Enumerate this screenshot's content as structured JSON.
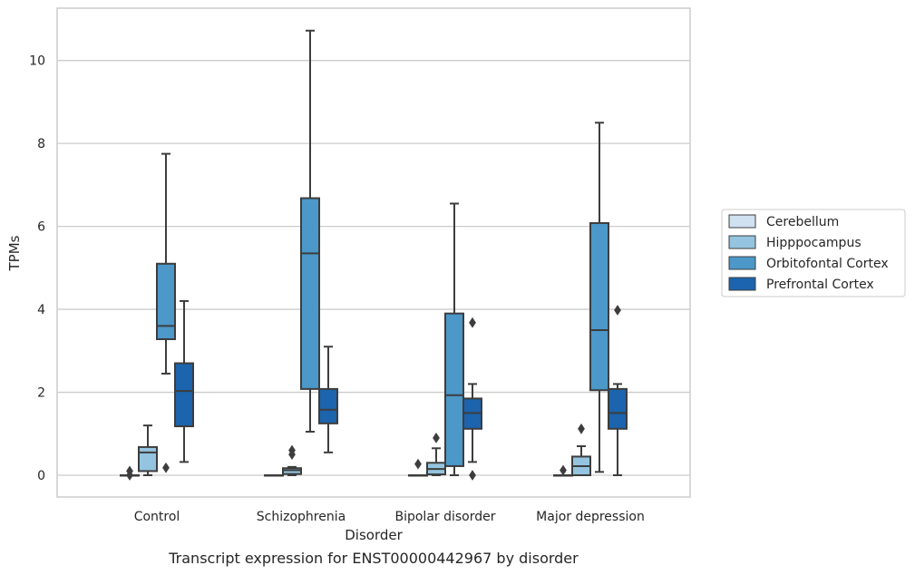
{
  "chart_data": {
    "type": "box",
    "xlabel": "Disorder",
    "ylabel": "TPMs",
    "caption": "Transcript expression for ENST00000442967 by disorder",
    "categories": [
      "Control",
      "Schizophrenia",
      "Bipolar disorder",
      "Major depression"
    ],
    "ylim": [
      -0.5,
      11.3
    ],
    "yticks": [
      0,
      2,
      4,
      6,
      8,
      10
    ],
    "grid": "horizontal",
    "legend_placement": "right",
    "series": [
      {
        "name": "Cerebellum",
        "color": "#d0e1f2",
        "boxes": [
          {
            "whislo": 0,
            "q1": 0,
            "med": 0,
            "q3": 0,
            "whishi": 0,
            "fliers": [
              0.0,
              0.1
            ]
          },
          {
            "whislo": 0,
            "q1": 0,
            "med": 0,
            "q3": 0,
            "whishi": 0,
            "fliers": []
          },
          {
            "whislo": 0,
            "q1": 0,
            "med": 0,
            "q3": 0,
            "whishi": 0,
            "fliers": [
              0.27
            ]
          },
          {
            "whislo": 0,
            "q1": 0,
            "med": 0,
            "q3": 0,
            "whishi": 0,
            "fliers": [
              0.12
            ]
          }
        ]
      },
      {
        "name": "Hipppocampus",
        "color": "#94c4df",
        "boxes": [
          {
            "whislo": 0.0,
            "q1": 0.1,
            "med": 0.55,
            "q3": 0.68,
            "whishi": 1.2,
            "fliers": []
          },
          {
            "whislo": 0.0,
            "q1": 0.03,
            "med": 0.12,
            "q3": 0.17,
            "whishi": 0.2,
            "fliers": [
              0.5,
              0.6
            ]
          },
          {
            "whislo": 0.0,
            "q1": 0.02,
            "med": 0.15,
            "q3": 0.3,
            "whishi": 0.65,
            "fliers": [
              0.9
            ]
          },
          {
            "whislo": 0.0,
            "q1": 0.0,
            "med": 0.22,
            "q3": 0.45,
            "whishi": 0.7,
            "fliers": [
              1.12
            ]
          }
        ]
      },
      {
        "name": "Orbitofontal Cortex",
        "color": "#4b98c9",
        "boxes": [
          {
            "whislo": 2.45,
            "q1": 3.28,
            "med": 3.6,
            "q3": 5.1,
            "whishi": 7.75,
            "fliers": [
              0.18
            ]
          },
          {
            "whislo": 1.05,
            "q1": 2.08,
            "med": 5.35,
            "q3": 6.68,
            "whishi": 10.72,
            "fliers": []
          },
          {
            "whislo": 0.0,
            "q1": 0.22,
            "med": 1.93,
            "q3": 3.9,
            "whishi": 6.55,
            "fliers": []
          },
          {
            "whislo": 0.08,
            "q1": 2.05,
            "med": 3.5,
            "q3": 6.08,
            "whishi": 8.5,
            "fliers": []
          }
        ]
      },
      {
        "name": "Prefrontal Cortex",
        "color": "#1c64ad",
        "boxes": [
          {
            "whislo": 0.32,
            "q1": 1.18,
            "med": 2.03,
            "q3": 2.7,
            "whishi": 4.2,
            "fliers": []
          },
          {
            "whislo": 0.55,
            "q1": 1.25,
            "med": 1.58,
            "q3": 2.08,
            "whishi": 3.1,
            "fliers": []
          },
          {
            "whislo": 0.32,
            "q1": 1.12,
            "med": 1.5,
            "q3": 1.85,
            "whishi": 2.2,
            "fliers": [
              0.0,
              3.68
            ]
          },
          {
            "whislo": 0.0,
            "q1": 1.12,
            "med": 1.5,
            "q3": 2.08,
            "whishi": 2.2,
            "fliers": [
              3.98
            ]
          }
        ]
      }
    ]
  }
}
